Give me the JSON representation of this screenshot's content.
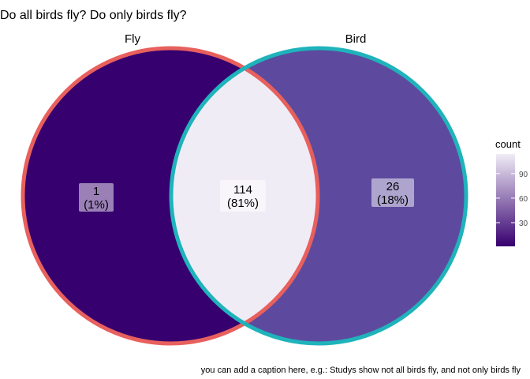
{
  "title": "Do all birds fly? Do only birds fly?",
  "caption": "you can add a caption here, e.g.: Studys show not all birds fly, and not only birds fly",
  "chart_data": {
    "type": "venn",
    "sets": [
      {
        "name": "Fly",
        "border_color": "#e8605d"
      },
      {
        "name": "Bird",
        "border_color": "#1fb3bb"
      }
    ],
    "regions": [
      {
        "sets": [
          "Fly"
        ],
        "count": 1,
        "percent": "(1%)",
        "fill": "#36006f"
      },
      {
        "sets": [
          "Fly",
          "Bird"
        ],
        "count": 114,
        "percent": "(81%)",
        "fill": "#f0ecf6"
      },
      {
        "sets": [
          "Bird"
        ],
        "count": 26,
        "percent": "(18%)",
        "fill": "#5d4a9e"
      }
    ],
    "legend": {
      "title": "count",
      "ticks": [
        30,
        60,
        90
      ],
      "range": [
        1,
        114
      ],
      "position": "right",
      "colors": [
        "#36006f",
        "#f0ecf6"
      ]
    }
  }
}
